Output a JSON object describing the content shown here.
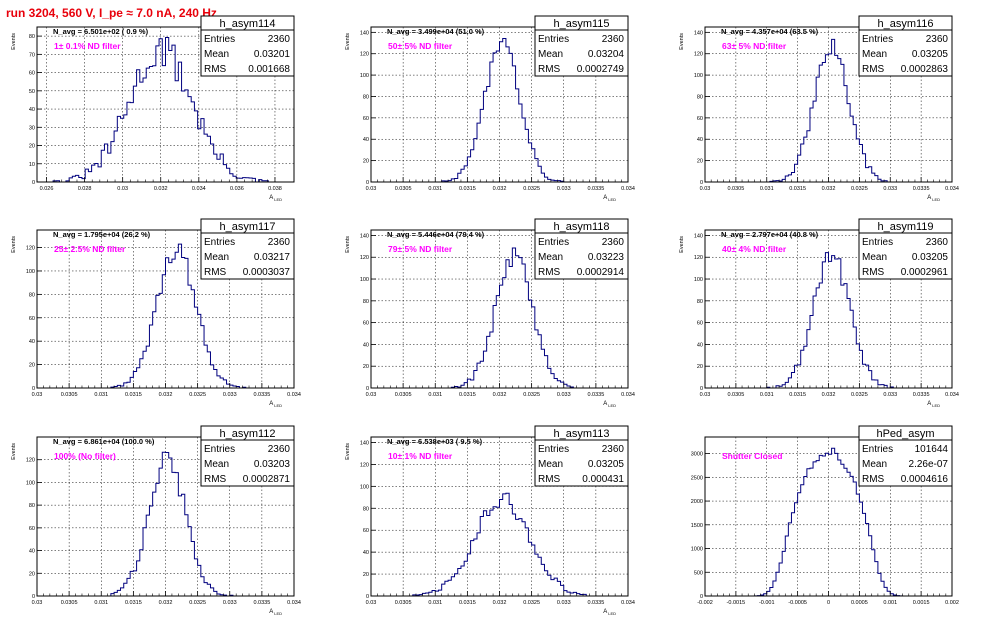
{
  "page_title": "run 3204,   560 V, I_pe ≈ 7.0 nA, 240 Hz",
  "colors": {
    "histogram": "#00007f",
    "annotation": "#ff00ff",
    "title": "#e8000b"
  },
  "chart_data": [
    {
      "type": "histogram",
      "name": "h_asym114",
      "ylabel": "Events",
      "xlabel": "A",
      "xlabel_sub": "LED",
      "xlim": [
        0.0255,
        0.039
      ],
      "ylim": [
        0,
        85
      ],
      "xticks": [
        0.026,
        0.028,
        0.03,
        0.032,
        0.034,
        0.036,
        0.038
      ],
      "xtick_labels": [
        "0.026",
        "0.028",
        "0.03",
        "0.032",
        "0.034",
        "0.036",
        "0.038"
      ],
      "yticks": [
        0,
        10,
        20,
        30,
        40,
        50,
        60,
        70,
        80
      ],
      "stats": {
        "Entries": "2360",
        "Mean": "0.03201",
        "RMS": "0.001668"
      },
      "navg": "N_avg = 6.501e+02 ( 0.9 %)",
      "label": "1± 0.1% ND filter",
      "mean": 0.03201,
      "sigma": 0.001668,
      "peak": 72,
      "noise": 10
    },
    {
      "type": "histogram",
      "name": "h_asym115",
      "ylabel": "Events",
      "xlabel": "A",
      "xlabel_sub": "LED",
      "xlim": [
        0.03,
        0.034
      ],
      "ylim": [
        0,
        145
      ],
      "xticks": [
        0.03,
        0.0305,
        0.031,
        0.0315,
        0.032,
        0.0325,
        0.033,
        0.0335,
        0.034
      ],
      "xtick_labels": [
        "0.03",
        "0.0305",
        "0.031",
        "0.0315",
        "0.032",
        "0.0325",
        "0.033",
        "0.0335",
        "0.034"
      ],
      "yticks": [
        0,
        20,
        40,
        60,
        80,
        100,
        120,
        140
      ],
      "stats": {
        "Entries": "2360",
        "Mean": "0.03204",
        "RMS": "0.0002749"
      },
      "navg": "N_avg = 3.499e+04 (51.0 %)",
      "label": "50± 5% ND filter",
      "mean": 0.03204,
      "sigma": 0.0002749,
      "peak": 130,
      "noise": 8
    },
    {
      "type": "histogram",
      "name": "h_asym116",
      "ylabel": "Events",
      "xlabel": "A",
      "xlabel_sub": "LED",
      "xlim": [
        0.03,
        0.034
      ],
      "ylim": [
        0,
        145
      ],
      "xticks": [
        0.03,
        0.0305,
        0.031,
        0.0315,
        0.032,
        0.0325,
        0.033,
        0.0335,
        0.034
      ],
      "xtick_labels": [
        "0.03",
        "0.0305",
        "0.031",
        "0.0315",
        "0.032",
        "0.0325",
        "0.033",
        "0.0335",
        "0.034"
      ],
      "yticks": [
        0,
        20,
        40,
        60,
        80,
        100,
        120,
        140
      ],
      "stats": {
        "Entries": "2360",
        "Mean": "0.03205",
        "RMS": "0.0002863"
      },
      "navg": "N_avg = 4.357e+04 (63.5 %)",
      "label": "63± 5% ND filter",
      "mean": 0.03205,
      "sigma": 0.0002863,
      "peak": 125,
      "noise": 9
    },
    {
      "type": "histogram",
      "name": "h_asym117",
      "ylabel": "Events",
      "xlabel": "A",
      "xlabel_sub": "LED",
      "xlim": [
        0.03,
        0.034
      ],
      "ylim": [
        0,
        135
      ],
      "xticks": [
        0.03,
        0.0305,
        0.031,
        0.0315,
        0.032,
        0.0325,
        0.033,
        0.0335,
        0.034
      ],
      "xtick_labels": [
        "0.03",
        "0.0305",
        "0.031",
        "0.0315",
        "0.032",
        "0.0325",
        "0.033",
        "0.0335",
        "0.034"
      ],
      "yticks": [
        0,
        20,
        40,
        60,
        80,
        100,
        120
      ],
      "stats": {
        "Entries": "2360",
        "Mean": "0.03217",
        "RMS": "0.0003037"
      },
      "navg": "N_avg = 1.795e+04 (26.2 %)",
      "label": "25± 2.5% ND filter",
      "mean": 0.03217,
      "sigma": 0.0003037,
      "peak": 118,
      "noise": 8
    },
    {
      "type": "histogram",
      "name": "h_asym118",
      "ylabel": "Events",
      "xlabel": "A",
      "xlabel_sub": "LED",
      "xlim": [
        0.03,
        0.034
      ],
      "ylim": [
        0,
        145
      ],
      "xticks": [
        0.03,
        0.0305,
        0.031,
        0.0315,
        0.032,
        0.0325,
        0.033,
        0.0335,
        0.034
      ],
      "xtick_labels": [
        "0.03",
        "0.0305",
        "0.031",
        "0.0315",
        "0.032",
        "0.0325",
        "0.033",
        "0.0335",
        "0.034"
      ],
      "yticks": [
        0,
        20,
        40,
        60,
        80,
        100,
        120,
        140
      ],
      "stats": {
        "Entries": "2360",
        "Mean": "0.03223",
        "RMS": "0.0002914"
      },
      "navg": "N_avg = 5.446e+04 (79.4 %)",
      "label": "79± 5% ND filter",
      "mean": 0.03223,
      "sigma": 0.0002914,
      "peak": 120,
      "noise": 9
    },
    {
      "type": "histogram",
      "name": "h_asym119",
      "ylabel": "Events",
      "xlabel": "A",
      "xlabel_sub": "LED",
      "xlim": [
        0.03,
        0.034
      ],
      "ylim": [
        0,
        145
      ],
      "xticks": [
        0.03,
        0.0305,
        0.031,
        0.0315,
        0.032,
        0.0325,
        0.033,
        0.0335,
        0.034
      ],
      "xtick_labels": [
        "0.03",
        "0.0305",
        "0.031",
        "0.0315",
        "0.032",
        "0.0325",
        "0.033",
        "0.0335",
        "0.034"
      ],
      "yticks": [
        0,
        20,
        40,
        60,
        80,
        100,
        120,
        140
      ],
      "stats": {
        "Entries": "2360",
        "Mean": "0.03205",
        "RMS": "0.0002961"
      },
      "navg": "N_avg = 2.797e+04 (40.8 %)",
      "label": "40± 4% ND filter",
      "mean": 0.03205,
      "sigma": 0.0002961,
      "peak": 122,
      "noise": 9
    },
    {
      "type": "histogram",
      "name": "h_asym112",
      "ylabel": "Events",
      "xlabel": "A",
      "xlabel_sub": "LED",
      "xlim": [
        0.03,
        0.034
      ],
      "ylim": [
        0,
        140
      ],
      "xticks": [
        0.03,
        0.0305,
        0.031,
        0.0315,
        0.032,
        0.0325,
        0.033,
        0.0335,
        0.034
      ],
      "xtick_labels": [
        "0.03",
        "0.0305",
        "0.031",
        "0.0315",
        "0.032",
        "0.0325",
        "0.033",
        "0.0335",
        "0.034"
      ],
      "yticks": [
        0,
        20,
        40,
        60,
        80,
        100,
        120
      ],
      "stats": {
        "Entries": "2360",
        "Mean": "0.03203",
        "RMS": "0.0002871"
      },
      "navg": "N_avg = 6.861e+04 (100.0 %)",
      "label": "100% (No filter)",
      "mean": 0.03203,
      "sigma": 0.0002871,
      "peak": 120,
      "noise": 9
    },
    {
      "type": "histogram",
      "name": "h_asym113",
      "ylabel": "Events",
      "xlabel": "A",
      "xlabel_sub": "LED",
      "xlim": [
        0.03,
        0.034
      ],
      "ylim": [
        0,
        145
      ],
      "xticks": [
        0.03,
        0.0305,
        0.031,
        0.0315,
        0.032,
        0.0325,
        0.033,
        0.0335,
        0.034
      ],
      "xtick_labels": [
        "0.03",
        "0.0305",
        "0.031",
        "0.0315",
        "0.032",
        "0.0325",
        "0.033",
        "0.0335",
        "0.034"
      ],
      "yticks": [
        0,
        20,
        40,
        60,
        80,
        100,
        120,
        140
      ],
      "stats": {
        "Entries": "2360",
        "Mean": "0.03205",
        "RMS": "0.000431"
      },
      "navg": "N_avg = 6.538e+03 ( 9.5 %)",
      "label": "10± 1% ND filter",
      "mean": 0.03205,
      "sigma": 0.000431,
      "peak": 88,
      "noise": 8
    },
    {
      "type": "histogram",
      "name": "hPed_asym",
      "ylabel": "",
      "xlabel": "",
      "xlabel_sub": "",
      "xlim": [
        -0.002,
        0.002
      ],
      "ylim": [
        0,
        3350
      ],
      "xticks": [
        -0.002,
        -0.0015,
        -0.001,
        -0.0005,
        0,
        0.0005,
        0.001,
        0.0015,
        0.002
      ],
      "xtick_labels": [
        "-0.002",
        "-0.0015",
        "-0.001",
        "-0.0005",
        "0",
        "0.0005",
        "0.001",
        "0.0015",
        "0.002"
      ],
      "yticks": [
        0,
        500,
        1000,
        1500,
        2000,
        2500,
        3000
      ],
      "stats": {
        "Entries": "101644",
        "Mean": "2.26e-07",
        "RMS": "0.0004616"
      },
      "navg": "",
      "label": "Shutter Closed",
      "mean": 2e-07,
      "sigma": 0.00042,
      "peak": 3050,
      "noise": 0.03,
      "flat": true
    }
  ]
}
